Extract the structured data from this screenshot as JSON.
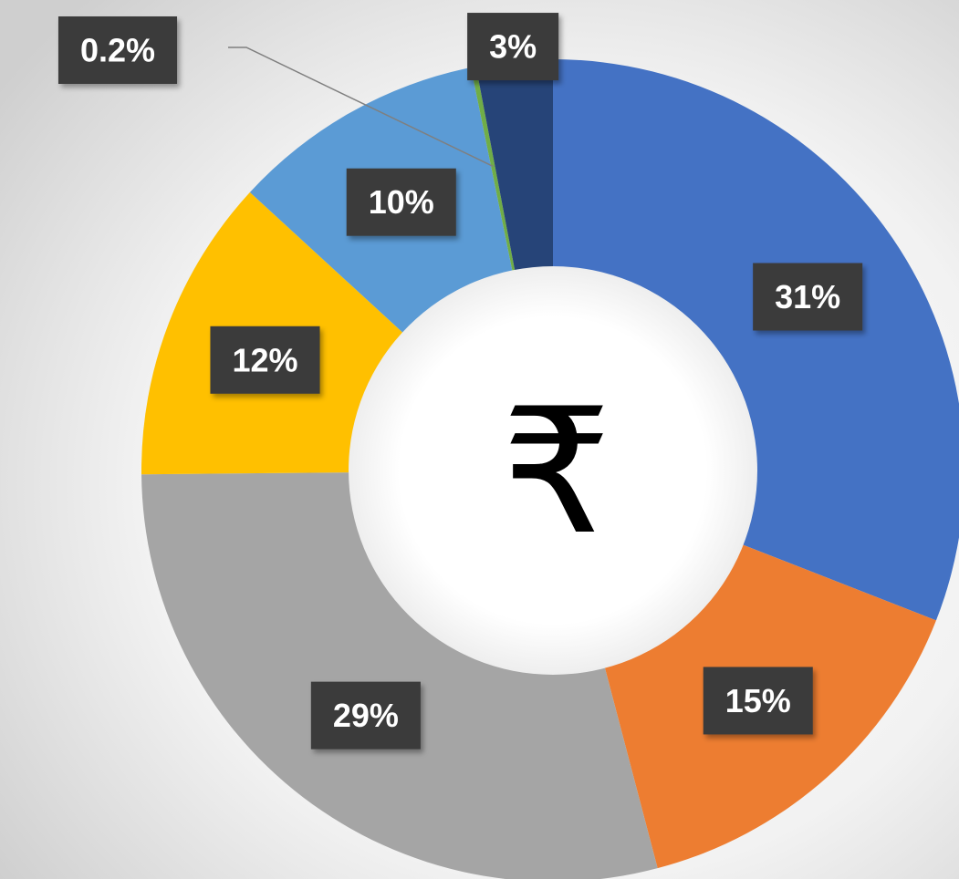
{
  "chart_data": {
    "type": "donut",
    "center_label": "₹",
    "categories": [
      null,
      null,
      null,
      null,
      null,
      null,
      null
    ],
    "values": [
      31,
      15,
      29,
      12,
      10,
      0.2,
      3
    ],
    "value_labels": [
      "31%",
      "15%",
      "29%",
      "12%",
      "10%",
      "0.2%",
      "3%"
    ],
    "colors": [
      "#4472c4",
      "#ed7d31",
      "#a5a5a5",
      "#ffc000",
      "#5b9bd5",
      "#70ad47",
      "#264478"
    ]
  }
}
